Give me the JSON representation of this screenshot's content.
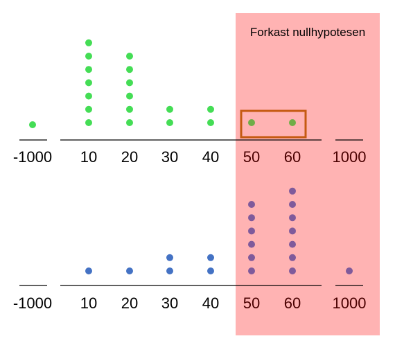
{
  "region": {
    "label": "Forkast nullhypotesen",
    "color": "#ffb3b3"
  },
  "highlight_color": "#c55a11",
  "tick_labels": [
    "-1000",
    "10",
    "20",
    "30",
    "40",
    "50",
    "60",
    "1000"
  ],
  "top_plot": {
    "dot_colors": {
      "default": "#44dd55",
      "in_region": "#70ad47"
    },
    "counts": [
      1,
      7,
      6,
      2,
      2,
      1,
      1,
      0
    ]
  },
  "bottom_plot": {
    "dot_colors": {
      "low": "#4472c4",
      "high": "#7f5a9b"
    },
    "counts": [
      0,
      1,
      1,
      2,
      2,
      6,
      7,
      1
    ]
  },
  "axis_color": "#000000",
  "label_color_highlight": "#4a0000"
}
